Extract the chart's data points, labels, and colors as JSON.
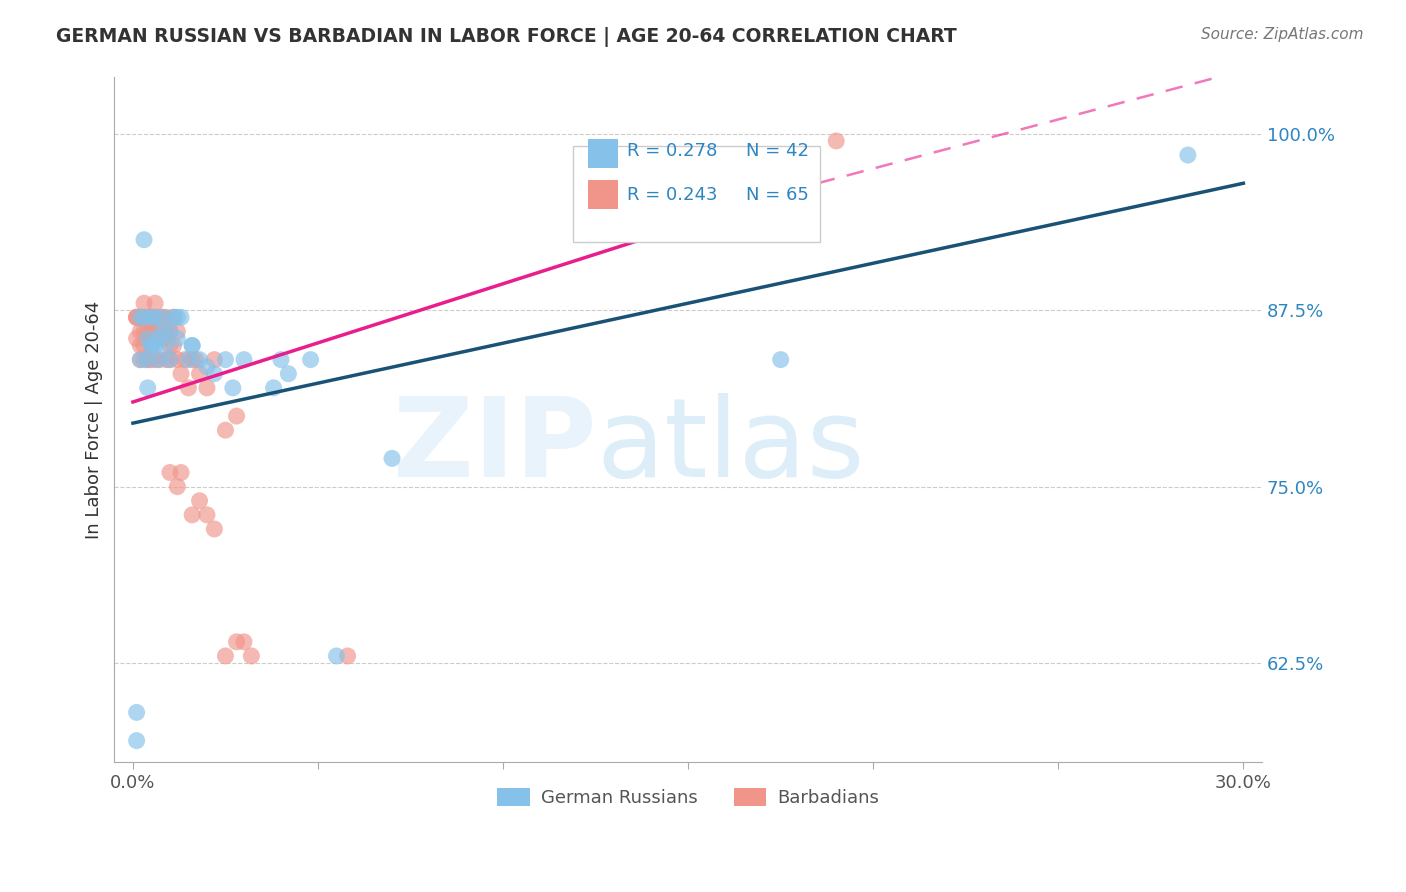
{
  "title": "GERMAN RUSSIAN VS BARBADIAN IN LABOR FORCE | AGE 20-64 CORRELATION CHART",
  "source": "Source: ZipAtlas.com",
  "ylabel": "In Labor Force | Age 20-64",
  "xlim": [
    -0.005,
    0.305
  ],
  "ylim": [
    0.555,
    1.04
  ],
  "yticks": [
    0.625,
    0.75,
    0.875,
    1.0
  ],
  "ytick_labels": [
    "62.5%",
    "75.0%",
    "87.5%",
    "100.0%"
  ],
  "xticks": [
    0.0,
    0.05,
    0.1,
    0.15,
    0.2,
    0.25,
    0.3
  ],
  "xtick_labels": [
    "0.0%",
    "",
    "",
    "",
    "",
    "",
    "30.0%"
  ],
  "blue_color": "#85C1E9",
  "pink_color": "#F1948A",
  "trend_blue_color": "#1A5276",
  "trend_pink_color": "#E91E8C",
  "gr_R": 0.278,
  "gr_N": 42,
  "bb_R": 0.243,
  "bb_N": 65,
  "trend_blue_x0": 0.0,
  "trend_blue_y0": 0.795,
  "trend_blue_x1": 0.3,
  "trend_blue_y1": 0.965,
  "trend_pink_x0": 0.0,
  "trend_pink_y0": 0.81,
  "trend_pink_x1": 0.185,
  "trend_pink_y1": 0.965,
  "trend_pink_dash_x0": 0.185,
  "trend_pink_dash_y0": 0.965,
  "trend_pink_dash_x1": 0.3,
  "trend_pink_dash_y1": 1.045,
  "german_russian_x": [
    0.001,
    0.001,
    0.002,
    0.002,
    0.003,
    0.003,
    0.004,
    0.004,
    0.004,
    0.005,
    0.005,
    0.005,
    0.006,
    0.006,
    0.007,
    0.007,
    0.008,
    0.008,
    0.009,
    0.01,
    0.01,
    0.011,
    0.012,
    0.012,
    0.013,
    0.015,
    0.016,
    0.016,
    0.018,
    0.02,
    0.022,
    0.025,
    0.027,
    0.03,
    0.038,
    0.04,
    0.042,
    0.048,
    0.055,
    0.07,
    0.175,
    0.285
  ],
  "german_russian_y": [
    0.57,
    0.59,
    0.84,
    0.87,
    0.87,
    0.925,
    0.855,
    0.84,
    0.82,
    0.85,
    0.87,
    0.85,
    0.85,
    0.87,
    0.84,
    0.855,
    0.86,
    0.87,
    0.85,
    0.86,
    0.84,
    0.87,
    0.87,
    0.855,
    0.87,
    0.84,
    0.85,
    0.85,
    0.84,
    0.835,
    0.83,
    0.84,
    0.82,
    0.84,
    0.82,
    0.84,
    0.83,
    0.84,
    0.63,
    0.77,
    0.84,
    0.985
  ],
  "barbadian_x": [
    0.001,
    0.001,
    0.001,
    0.001,
    0.002,
    0.002,
    0.002,
    0.002,
    0.002,
    0.003,
    0.003,
    0.003,
    0.003,
    0.003,
    0.004,
    0.004,
    0.004,
    0.004,
    0.005,
    0.005,
    0.005,
    0.005,
    0.005,
    0.006,
    0.006,
    0.006,
    0.006,
    0.007,
    0.007,
    0.007,
    0.008,
    0.008,
    0.009,
    0.009,
    0.009,
    0.01,
    0.01,
    0.01,
    0.011,
    0.011,
    0.012,
    0.012,
    0.013,
    0.014,
    0.015,
    0.016,
    0.017,
    0.018,
    0.02,
    0.022,
    0.025,
    0.028,
    0.01,
    0.012,
    0.013,
    0.016,
    0.018,
    0.02,
    0.022,
    0.025,
    0.028,
    0.03,
    0.032,
    0.058,
    0.19
  ],
  "barbadian_y": [
    0.87,
    0.87,
    0.855,
    0.87,
    0.87,
    0.86,
    0.85,
    0.84,
    0.87,
    0.88,
    0.87,
    0.86,
    0.85,
    0.84,
    0.87,
    0.86,
    0.855,
    0.84,
    0.87,
    0.87,
    0.86,
    0.85,
    0.84,
    0.88,
    0.87,
    0.86,
    0.84,
    0.87,
    0.86,
    0.84,
    0.87,
    0.855,
    0.87,
    0.86,
    0.84,
    0.86,
    0.85,
    0.84,
    0.87,
    0.85,
    0.84,
    0.86,
    0.83,
    0.84,
    0.82,
    0.84,
    0.84,
    0.83,
    0.82,
    0.84,
    0.79,
    0.8,
    0.76,
    0.75,
    0.76,
    0.73,
    0.74,
    0.73,
    0.72,
    0.63,
    0.64,
    0.64,
    0.63,
    0.63,
    0.995
  ]
}
